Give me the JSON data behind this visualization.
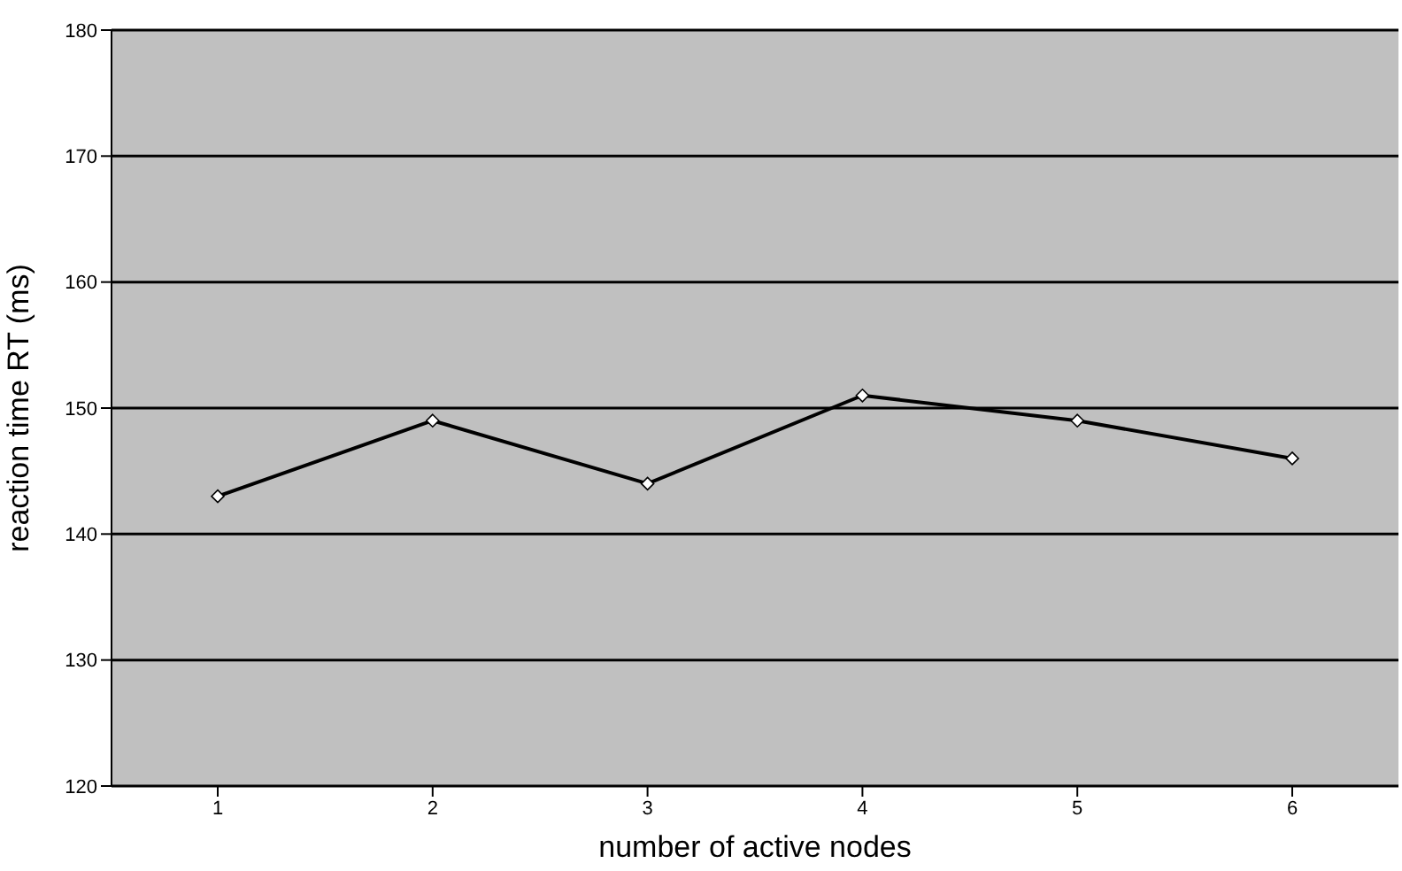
{
  "chart_data": {
    "type": "line",
    "xlabel": "number of active nodes",
    "ylabel": "reaction time RT (ms)",
    "categories": [
      "1",
      "2",
      "3",
      "4",
      "5",
      "6"
    ],
    "series": [
      {
        "color": "#000000",
        "values": [
          143,
          149,
          144,
          151,
          149,
          146
        ]
      }
    ],
    "ylim": [
      120,
      180
    ],
    "yticks": [
      120,
      130,
      140,
      150,
      160,
      170,
      180
    ],
    "grid": "y",
    "marker": "diamond",
    "line_style": "solid"
  }
}
